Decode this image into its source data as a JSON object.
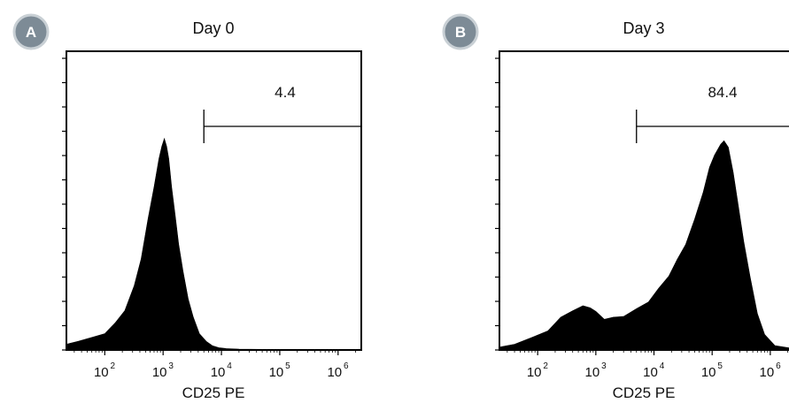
{
  "chart_data": [
    {
      "type": "area",
      "panel_label": "A",
      "title": "Day 0",
      "xlabel": "CD25 PE",
      "x_scale": "log",
      "x_ticks": [
        {
          "base": "10",
          "exp": "2",
          "value": 100
        },
        {
          "base": "10",
          "exp": "3",
          "value": 1000
        },
        {
          "base": "10",
          "exp": "4",
          "value": 10000
        },
        {
          "base": "10",
          "exp": "5",
          "value": 100000
        },
        {
          "base": "10",
          "exp": "6",
          "value": 1000000
        }
      ],
      "xlim": [
        22,
        2500000
      ],
      "ylim": [
        0,
        100
      ],
      "gate": {
        "label": "4.4",
        "start": 5000,
        "end": 2500000
      },
      "fill_color": "#000000",
      "series": [
        {
          "x": [
            22,
            35,
            60,
            100,
            150,
            220,
            320,
            420,
            550,
            700,
            850,
            950,
            1050,
            1150,
            1250,
            1400,
            1600,
            1850,
            2200,
            2700,
            3300,
            4200,
            5500,
            7000,
            9000,
            12000,
            20000,
            50000,
            200000,
            1000000,
            2500000
          ],
          "y": [
            2,
            3,
            4,
            6,
            9,
            14,
            22,
            32,
            45,
            57,
            66,
            71,
            73,
            71,
            66,
            57,
            47,
            37,
            27,
            18,
            11,
            6,
            3,
            1.5,
            0.8,
            0.5,
            0.3,
            0.2,
            0.2,
            0.2,
            0.2
          ]
        }
      ]
    },
    {
      "type": "area",
      "panel_label": "B",
      "title": "Day 3",
      "xlabel": "CD25 PE",
      "x_scale": "log",
      "x_ticks": [
        {
          "base": "10",
          "exp": "2",
          "value": 100
        },
        {
          "base": "10",
          "exp": "3",
          "value": 1000
        },
        {
          "base": "10",
          "exp": "4",
          "value": 10000
        },
        {
          "base": "10",
          "exp": "5",
          "value": 100000
        },
        {
          "base": "10",
          "exp": "6",
          "value": 1000000
        }
      ],
      "xlim": [
        22,
        2500000
      ],
      "ylim": [
        0,
        100
      ],
      "gate": {
        "label": "84.4",
        "start": 5000,
        "end": 2500000
      },
      "fill_color": "#000000",
      "series": [
        {
          "x": [
            22,
            40,
            80,
            150,
            250,
            400,
            600,
            800,
            1000,
            1400,
            2000,
            3000,
            5000,
            8000,
            12000,
            18000,
            25000,
            35000,
            50000,
            70000,
            90000,
            110000,
            140000,
            160000,
            190000,
            230000,
            280000,
            350000,
            450000,
            600000,
            800000,
            1200000,
            2500000
          ],
          "y": [
            1,
            2,
            4,
            7,
            11,
            14,
            15,
            15,
            13,
            11,
            11,
            12,
            14,
            17,
            21,
            26,
            31,
            37,
            45,
            55,
            63,
            68,
            71,
            73,
            70,
            62,
            50,
            38,
            25,
            13,
            5,
            1.5,
            0.5
          ]
        }
      ]
    }
  ]
}
